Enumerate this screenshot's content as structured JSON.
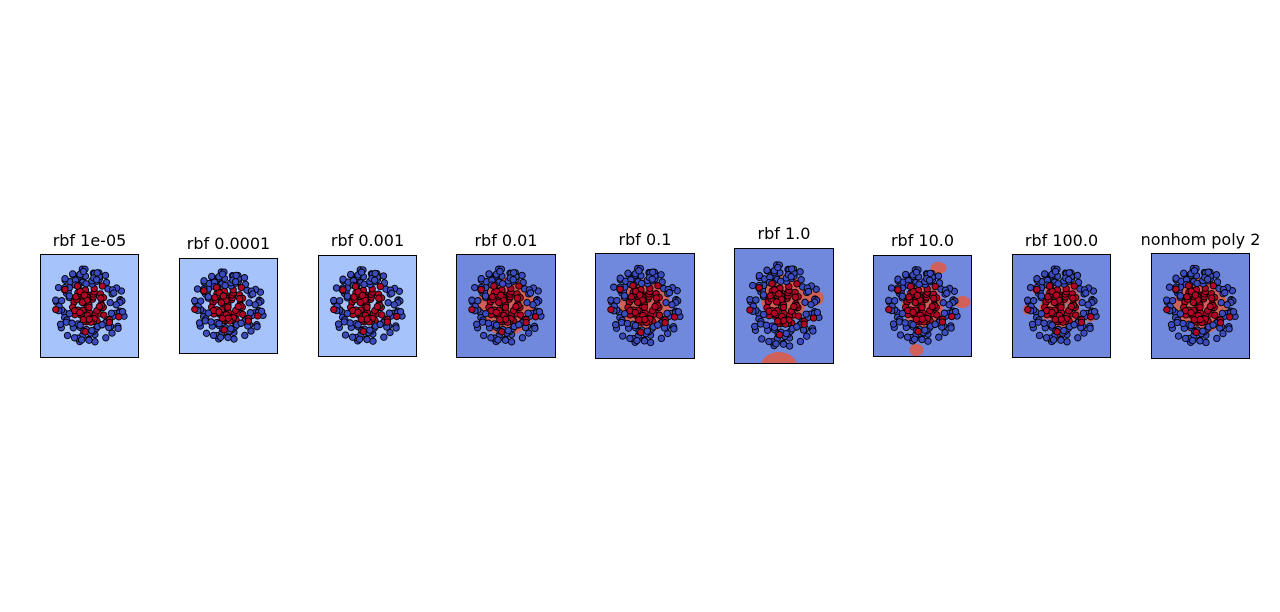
{
  "chart_data": {
    "type": "scatter",
    "colors": {
      "class_inner": "#b40426",
      "class_outer": "#3b4cc0",
      "region_low": "#a6c4fb",
      "region_outer": "#7189dd",
      "region_inner": "#d16058",
      "point_edge": "#000000"
    },
    "dataset": "two concentric rings: inner cluster (red class) and outer ring (blue class)",
    "panels": [
      {
        "title": "rbf 1e-05",
        "kernel": "rbf",
        "gamma": 1e-05,
        "decision_region": "uniform-low"
      },
      {
        "title": "rbf 0.0001",
        "kernel": "rbf",
        "gamma": 0.0001,
        "decision_region": "uniform-low"
      },
      {
        "title": "rbf 0.001",
        "kernel": "rbf",
        "gamma": 0.001,
        "decision_region": "uniform-low"
      },
      {
        "title": "rbf 0.01",
        "kernel": "rbf",
        "gamma": 0.01,
        "decision_region": "large-disc",
        "region_radius": 0.62
      },
      {
        "title": "rbf 0.1",
        "kernel": "rbf",
        "gamma": 0.1,
        "decision_region": "disc",
        "region_radius": 0.55
      },
      {
        "title": "rbf 1.0",
        "kernel": "rbf",
        "gamma": 1.0,
        "decision_region": "irregular",
        "region_radius": 0.5
      },
      {
        "title": "rbf 10.0",
        "kernel": "rbf",
        "gamma": 10.0,
        "decision_region": "fragmented",
        "region_radius": 0.45
      },
      {
        "title": "rbf 100.0",
        "kernel": "rbf",
        "gamma": 100.0,
        "decision_region": "tight-points",
        "region_radius": 0.0
      },
      {
        "title": "nonhom poly 2",
        "kernel": "poly",
        "degree": 2,
        "decision_region": "disc",
        "region_radius": 0.58
      }
    ]
  }
}
